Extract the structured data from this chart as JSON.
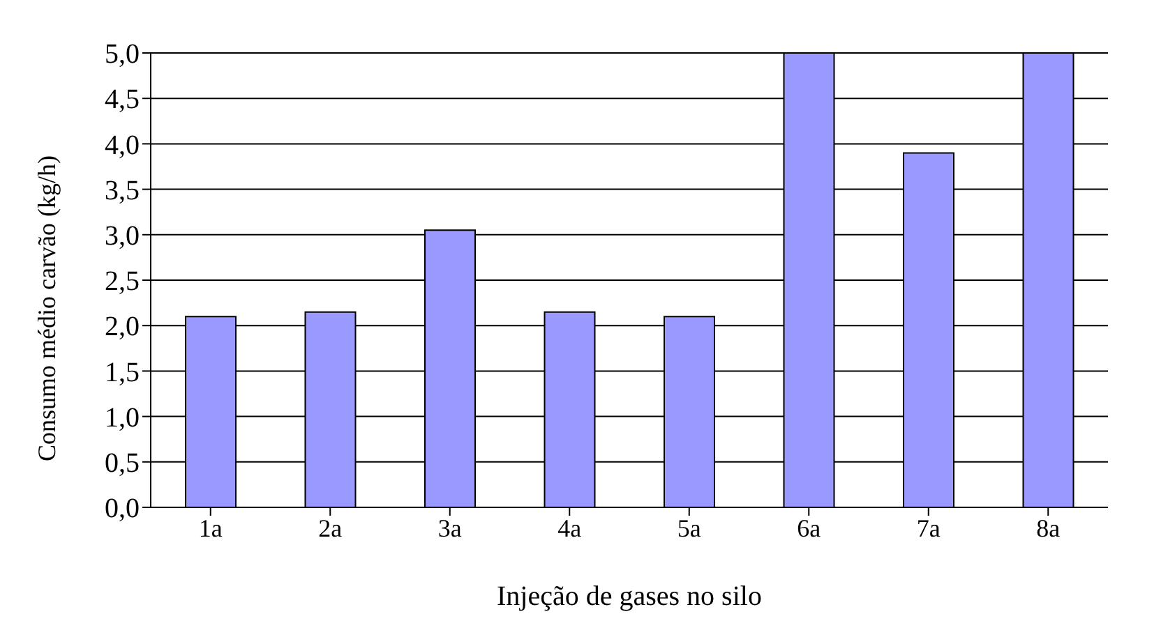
{
  "chart_data": {
    "type": "bar",
    "xlabel": "Injeção de gases no silo",
    "ylabel": "Consumo médio carvão (kg/h)",
    "categories": [
      "1a",
      "2a",
      "3a",
      "4a",
      "5a",
      "6a",
      "7a",
      "8a"
    ],
    "values": [
      2.1,
      2.15,
      3.05,
      2.15,
      2.1,
      5.0,
      3.9,
      5.0
    ],
    "color": "#9999ff",
    "ylim": [
      0,
      5
    ],
    "yticks": [
      {
        "value": 0,
        "label": "0,0"
      },
      {
        "value": 0.5,
        "label": "0,5"
      },
      {
        "value": 1,
        "label": "1,0"
      },
      {
        "value": 1.5,
        "label": "1,5"
      },
      {
        "value": 2,
        "label": "2,0"
      },
      {
        "value": 2.5,
        "label": "2,5"
      },
      {
        "value": 3,
        "label": "3,0"
      },
      {
        "value": 3.5,
        "label": "3,5"
      },
      {
        "value": 4,
        "label": "4,0"
      },
      {
        "value": 4.5,
        "label": "4,5"
      },
      {
        "value": 5,
        "label": "5,0"
      }
    ],
    "grid": "y",
    "legend": false
  }
}
